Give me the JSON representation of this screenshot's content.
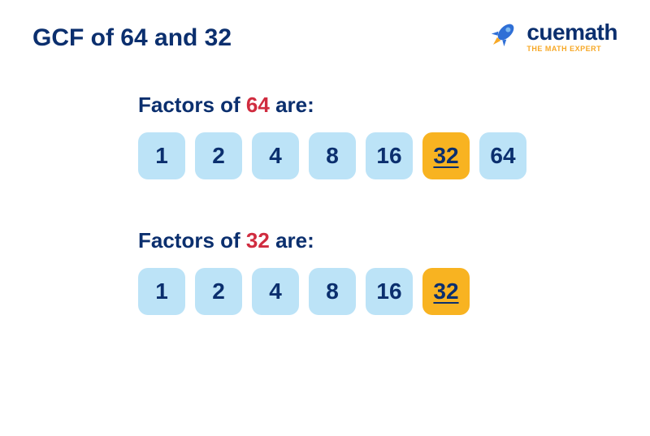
{
  "page": {
    "title": "GCF of 64 and 32",
    "background": "#ffffff",
    "title_color": "#0b2f6e",
    "title_fontsize": 30
  },
  "logo": {
    "brand": "cuemath",
    "tagline": "THE MATH EXPERT",
    "brand_color": "#0b2f6e",
    "tagline_color": "#f7a826",
    "rocket_body": "#2f6fd6",
    "rocket_flame": "#f7a826"
  },
  "styles": {
    "label_color": "#0b2f6e",
    "label_fontsize": 26,
    "highlight_color": "#d02c3f",
    "box_normal_bg": "#bce3f7",
    "box_normal_color": "#0b2f6e",
    "box_gcf_bg": "#f8b321",
    "box_gcf_color": "#0b2f6e",
    "box_radius": 12,
    "box_fontsize": 28,
    "box_gap": 12
  },
  "sections": [
    {
      "label_prefix": "Factors of ",
      "label_number": "64",
      "label_suffix": " are:",
      "factors": [
        {
          "value": "1",
          "gcf": false
        },
        {
          "value": "2",
          "gcf": false
        },
        {
          "value": "4",
          "gcf": false
        },
        {
          "value": "8",
          "gcf": false
        },
        {
          "value": "16",
          "gcf": false
        },
        {
          "value": "32",
          "gcf": true
        },
        {
          "value": "64",
          "gcf": false
        }
      ]
    },
    {
      "label_prefix": "Factors of ",
      "label_number": "32",
      "label_suffix": " are:",
      "factors": [
        {
          "value": "1",
          "gcf": false
        },
        {
          "value": "2",
          "gcf": false
        },
        {
          "value": "4",
          "gcf": false
        },
        {
          "value": "8",
          "gcf": false
        },
        {
          "value": "16",
          "gcf": false
        },
        {
          "value": "32",
          "gcf": true
        }
      ]
    }
  ]
}
